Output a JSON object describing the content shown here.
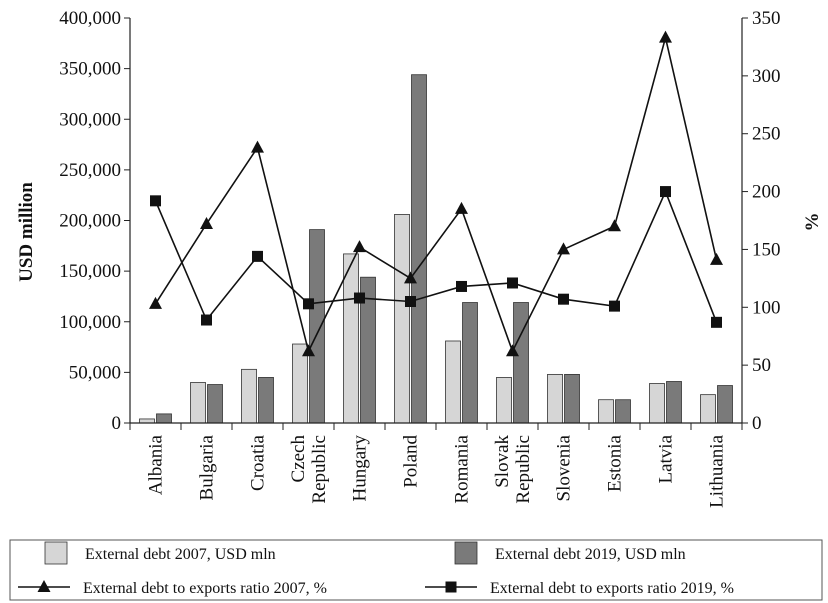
{
  "chart_data": {
    "type": "bar",
    "title": "",
    "categories": [
      "Albania",
      "Bulgaria",
      "Croatia",
      "Czech Republic",
      "Hungary",
      "Poland",
      "Romania",
      "Slovak Republic",
      "Slovenia",
      "Estonia",
      "Latvia",
      "Lithuania"
    ],
    "ylabel": "USD million",
    "y2label": "%",
    "ylim": [
      0,
      400000
    ],
    "y2lim": [
      0,
      350
    ],
    "yticks": [
      "0",
      "50,000",
      "100,000",
      "150,000",
      "200,000",
      "250,000",
      "300,000",
      "350,000",
      "400,000"
    ],
    "y2ticks": [
      "0",
      "50",
      "100",
      "150",
      "200",
      "250",
      "300",
      "350"
    ],
    "grid": false,
    "legend_position": "bottom",
    "series": [
      {
        "name": "External debt 2007, USD mln",
        "kind": "bar",
        "axis": "left",
        "color": "#d6d6d6",
        "values": [
          4000,
          40000,
          53000,
          78000,
          167000,
          206000,
          81000,
          45000,
          48000,
          23000,
          39000,
          28000
        ]
      },
      {
        "name": "External debt 2019, USD mln",
        "kind": "bar",
        "axis": "left",
        "color": "#7a7a7a",
        "values": [
          9000,
          38000,
          45000,
          191000,
          144000,
          344000,
          119000,
          119000,
          48000,
          23000,
          41000,
          37000
        ]
      },
      {
        "name": "External debt to exports ratio 2007, %",
        "kind": "line",
        "marker": "triangle",
        "axis": "right",
        "color": "#111111",
        "values": [
          103,
          172,
          238,
          62,
          152,
          125,
          185,
          62,
          150,
          170,
          333,
          141
        ]
      },
      {
        "name": "External debt to exports ratio 2019, %",
        "kind": "line",
        "marker": "square",
        "axis": "right",
        "color": "#111111",
        "values": [
          192,
          89,
          144,
          103,
          108,
          105,
          118,
          121,
          107,
          101,
          200,
          87
        ]
      }
    ]
  }
}
